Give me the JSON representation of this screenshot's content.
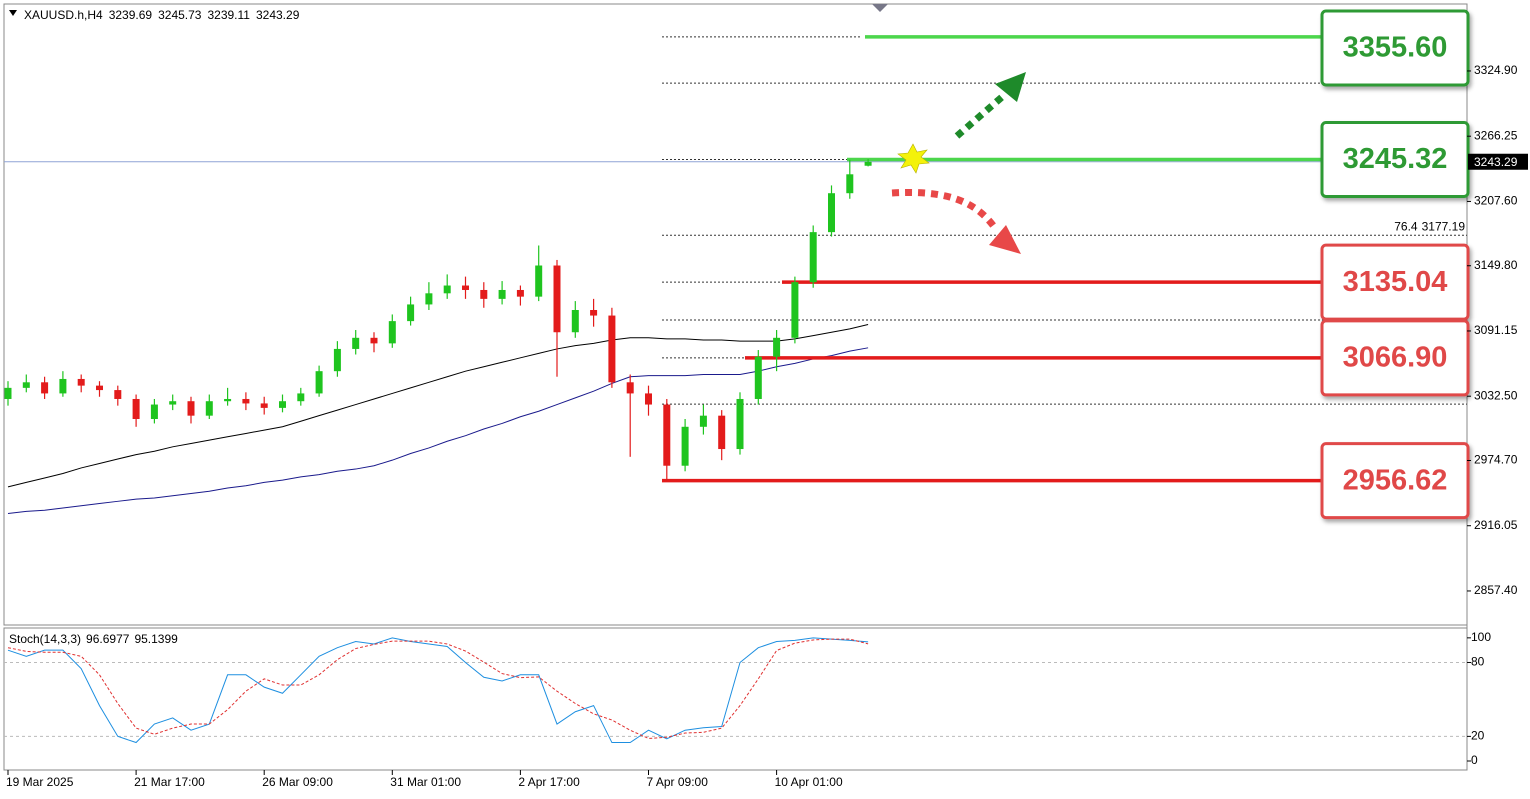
{
  "chart_data": {
    "type": "candlestick",
    "symbol": "XAUUSD.h,H4",
    "categories": [
      "19 Mar 2025",
      null,
      null,
      null,
      null,
      null,
      null,
      "21 Mar 17:00",
      null,
      null,
      null,
      null,
      null,
      null,
      "26 Mar 09:00",
      null,
      null,
      null,
      null,
      null,
      null,
      "31 Mar 01:00",
      null,
      null,
      null,
      null,
      null,
      null,
      "2 Apr 17:00",
      null,
      null,
      null,
      null,
      null,
      null,
      "7 Apr 09:00",
      null,
      null,
      null,
      null,
      null,
      null,
      "10 Apr 01:00",
      null,
      null,
      null,
      null,
      null
    ],
    "open": [
      3030,
      3040,
      3045,
      3035,
      3048,
      3042,
      3038,
      3030,
      3012,
      3025,
      3028,
      3015,
      3028,
      3030,
      3026,
      3022,
      3028,
      3035,
      3055,
      3075,
      3085,
      3080,
      3100,
      3115,
      3125,
      3132,
      3128,
      3120,
      3128,
      3122,
      3150,
      3090,
      3110,
      3105,
      3045,
      3035,
      3025,
      2970,
      3005,
      3015,
      2985,
      3030,
      3068,
      3085,
      3135,
      3180,
      3215,
      3239.69
    ],
    "high": [
      3046,
      3052,
      3050,
      3055,
      3052,
      3046,
      3042,
      3034,
      3030,
      3034,
      3032,
      3034,
      3040,
      3036,
      3032,
      3034,
      3040,
      3060,
      3082,
      3092,
      3090,
      3106,
      3122,
      3135,
      3142,
      3140,
      3135,
      3136,
      3132,
      3168,
      3155,
      3118,
      3120,
      3112,
      3052,
      3042,
      3030,
      3012,
      3025,
      3020,
      3036,
      3074,
      3092,
      3140,
      3186,
      3222,
      3245,
      3245.73
    ],
    "low": [
      3024,
      3036,
      3030,
      3032,
      3036,
      3032,
      3024,
      3005,
      3008,
      3020,
      3008,
      3012,
      3024,
      3020,
      3016,
      3018,
      3024,
      3032,
      3050,
      3070,
      3072,
      3076,
      3096,
      3110,
      3120,
      3120,
      3112,
      3115,
      3114,
      3118,
      3050,
      3085,
      3095,
      3040,
      2978,
      3015,
      2956.62,
      2965,
      2998,
      2975,
      2980,
      3025,
      3055,
      3080,
      3130,
      3176,
      3210,
      3239.11
    ],
    "close": [
      3040,
      3045,
      3035,
      3048,
      3042,
      3038,
      3030,
      3012,
      3025,
      3028,
      3015,
      3028,
      3030,
      3026,
      3022,
      3028,
      3035,
      3055,
      3075,
      3085,
      3080,
      3100,
      3115,
      3125,
      3132,
      3128,
      3120,
      3128,
      3122,
      3150,
      3090,
      3110,
      3105,
      3045,
      3035,
      3025,
      2970,
      3005,
      3015,
      2985,
      3030,
      3068,
      3085,
      3135,
      3180,
      3215,
      3232,
      3243.29
    ],
    "up_color": "#1fc41f",
    "down_color": "#e31b1b",
    "ylim": [
      2826.8,
      3388.7
    ],
    "yticks": [
      {
        "value": 3324.9,
        "label": "3324.90"
      },
      3266.25,
      {
        "value": 3207.6,
        "label": "3207.60"
      },
      {
        "value": 3149.8,
        "label": "3149.80"
      },
      3091.15,
      {
        "value": 3032.5,
        "label": "3032.50"
      },
      {
        "value": 2974.7,
        "label": "2974.70"
      },
      2916.05,
      {
        "value": 2857.4,
        "label": "2857.40"
      }
    ],
    "moving_averages": [
      {
        "color": "#000000",
        "values": [
          2951,
          2955,
          2959,
          2963,
          2968,
          2972,
          2976,
          2980,
          2983,
          2987,
          2990,
          2993,
          2996,
          2999,
          3002,
          3005,
          3010,
          3015,
          3020,
          3025,
          3030,
          3035,
          3040,
          3045,
          3050,
          3055,
          3059,
          3063,
          3067,
          3071,
          3075,
          3078,
          3080,
          3083,
          3085,
          3085,
          3084,
          3084,
          3083,
          3083,
          3082,
          3082,
          3082,
          3084,
          3087,
          3090,
          3093,
          3097
        ]
      },
      {
        "color": "#1a1a8c",
        "values": [
          2927,
          2929,
          2930,
          2932,
          2934,
          2936,
          2938,
          2940,
          2941,
          2943,
          2945,
          2947,
          2950,
          2952,
          2955,
          2957,
          2960,
          2962,
          2965,
          2967,
          2970,
          2975,
          2981,
          2986,
          2992,
          2997,
          3003,
          3008,
          3014,
          3019,
          3025,
          3031,
          3037,
          3044,
          3050,
          3051,
          3051,
          3051,
          3052,
          3052,
          3052,
          3055,
          3059,
          3062,
          3066,
          3069,
          3073,
          3076
        ]
      }
    ],
    "price_line_color": "#8fa3d6",
    "fib_levels": [
      3355.6,
      3314,
      3245.32,
      3177.19,
      3135.04,
      3101,
      3066.9,
      3025.4
    ],
    "fib_label_ratio": 76.4,
    "levels": [
      {
        "value": 3355.6,
        "label": "3355.60",
        "color": "#2e9a34",
        "line_color": "#4cd64c"
      },
      {
        "value": 3245.32,
        "label": "3245.32",
        "color": "#2e9a34",
        "line_color": "#4cd64c"
      },
      {
        "value": 3135.04,
        "label": "3135.04",
        "color": "#e04848",
        "line_color": "#e31b1b"
      },
      {
        "value": 3066.9,
        "label": "3066.90",
        "color": "#e04848",
        "line_color": "#e31b1b"
      },
      {
        "value": 2956.62,
        "label": "2956.62",
        "color": "#e04848",
        "line_color": "#e31b1b"
      }
    ],
    "oscillator": {
      "type": "line",
      "name": "Stoch(14,3,3)",
      "ylim": [
        -7.3,
        108
      ],
      "yticks": [
        100,
        80,
        20,
        0
      ],
      "levels": [
        80,
        20
      ],
      "series": [
        {
          "color": "#1e8fe0",
          "dashed": false,
          "values": [
            90,
            85,
            90,
            90,
            75,
            45,
            20,
            15,
            30,
            35,
            25,
            30,
            70,
            70,
            60,
            55,
            70,
            85,
            92,
            97,
            95,
            100,
            97,
            95,
            93,
            80,
            68,
            65,
            70,
            70,
            30,
            40,
            45,
            15,
            15,
            25,
            18,
            25,
            27,
            28,
            80,
            92,
            97,
            98,
            100,
            99,
            98,
            96.6977
          ]
        },
        {
          "color": "#e03030",
          "dashed": true,
          "values": [
            92,
            89,
            88.3,
            88.3,
            85,
            70,
            46.7,
            26.7,
            21.7,
            26.7,
            30,
            30,
            41.7,
            56.7,
            66.7,
            61.7,
            61.7,
            70,
            82.3,
            91.3,
            94.7,
            97.3,
            97.3,
            97.3,
            95,
            89.3,
            80.3,
            71,
            67.7,
            68.3,
            56.7,
            46.7,
            38.3,
            33.3,
            25,
            18.3,
            19.3,
            22.7,
            23.3,
            26.7,
            45,
            66.7,
            89.7,
            95.7,
            98.3,
            99,
            99,
            95.1399
          ]
        }
      ]
    }
  }
}
